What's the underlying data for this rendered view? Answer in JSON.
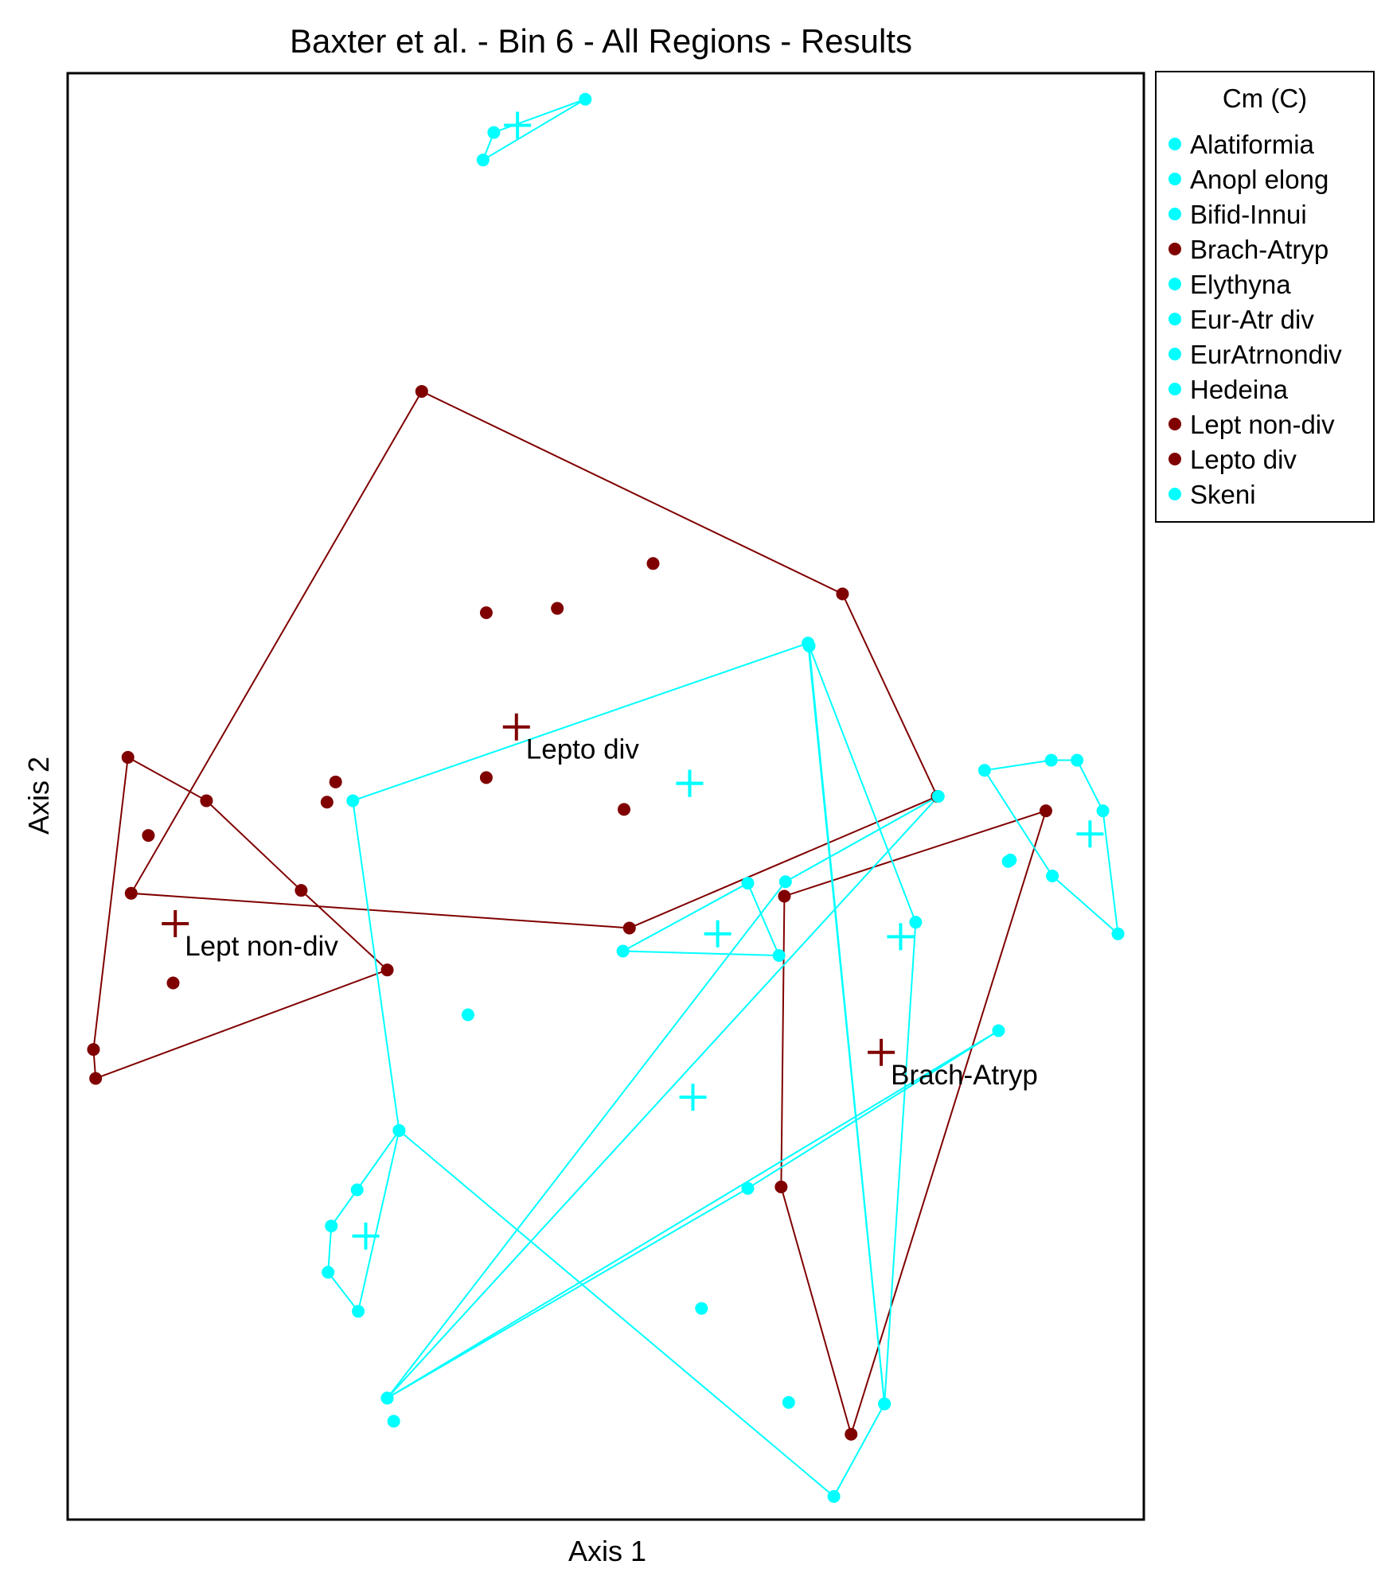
{
  "chart_data": {
    "type": "scatter",
    "title": "Baxter et al. - Bin 6 - All Regions - Results",
    "xlabel": "Axis 1",
    "ylabel": "Axis 2",
    "xlim": [
      0,
      1000
    ],
    "ylim": [
      0,
      1000
    ],
    "grid": false,
    "legend": {
      "title": "Cm (C)",
      "placement": "right",
      "entries": [
        {
          "name": "Alatiformia",
          "color": "#00ffff"
        },
        {
          "name": "Anopl elong",
          "color": "#00ffff"
        },
        {
          "name": "Bifid-Innui",
          "color": "#00ffff"
        },
        {
          "name": "Brach-Atryp",
          "color": "#800000"
        },
        {
          "name": "Elythyna",
          "color": "#00ffff"
        },
        {
          "name": "Eur-Atr div",
          "color": "#00ffff"
        },
        {
          "name": "EurAtrnondiv",
          "color": "#00ffff"
        },
        {
          "name": "Hedeina",
          "color": "#00ffff"
        },
        {
          "name": "Lept non-div",
          "color": "#800000"
        },
        {
          "name": "Lepto div",
          "color": "#800000"
        },
        {
          "name": "Skeni",
          "color": "#00ffff"
        }
      ]
    },
    "groups": [
      {
        "color": "#00ffff",
        "centroid": [
          418,
          964
        ],
        "hull": [
          [
            481,
            982
          ],
          [
            396,
            959
          ],
          [
            386,
            940
          ]
        ],
        "points": [
          [
            481,
            982
          ],
          [
            396,
            959
          ],
          [
            386,
            940
          ]
        ]
      },
      {
        "color": "#800000",
        "label": "Lepto div",
        "centroid": [
          417,
          548
        ],
        "hull": [
          [
            329,
            780
          ],
          [
            720,
            640
          ],
          [
            808,
            500
          ],
          [
            522,
            409
          ],
          [
            59,
            433
          ]
        ],
        "points": [
          [
            329,
            780
          ],
          [
            720,
            640
          ],
          [
            808,
            500
          ],
          [
            522,
            409
          ],
          [
            59,
            433
          ],
          [
            544,
            661
          ],
          [
            389,
            627
          ],
          [
            455,
            630
          ],
          [
            389,
            513
          ],
          [
            249,
            510
          ],
          [
            241,
            496
          ],
          [
            517,
            491
          ]
        ]
      },
      {
        "color": "#800000",
        "label": "Lept non-div",
        "centroid": [
          100,
          412
        ],
        "hull": [
          [
            56,
            527
          ],
          [
            129,
            497
          ],
          [
            217,
            435
          ],
          [
            297,
            380
          ],
          [
            26,
            305
          ],
          [
            24,
            325
          ]
        ],
        "points": [
          [
            56,
            527
          ],
          [
            129,
            497
          ],
          [
            217,
            435
          ],
          [
            297,
            380
          ],
          [
            26,
            305
          ],
          [
            24,
            325
          ],
          [
            75,
            473
          ],
          [
            98,
            371
          ]
        ]
      },
      {
        "color": "#800000",
        "label": "Brach-Atryp",
        "centroid": [
          756,
          323
        ],
        "hull": [
          [
            909,
            490
          ],
          [
            666,
            431
          ],
          [
            663,
            230
          ],
          [
            728,
            59
          ]
        ],
        "points": [
          [
            909,
            490
          ],
          [
            666,
            431
          ],
          [
            663,
            230
          ],
          [
            728,
            59
          ]
        ]
      },
      {
        "color": "#00ffff",
        "centroid": [
          604,
          405
        ],
        "hull": [
          [
            632,
            440
          ],
          [
            661,
            390
          ],
          [
            516,
            393
          ]
        ],
        "points": [
          [
            632,
            440
          ],
          [
            661,
            390
          ],
          [
            516,
            393
          ]
        ]
      },
      {
        "color": "#00ffff",
        "centroid": [
          774,
          403
        ],
        "hull": [
          [
            689,
            604
          ],
          [
            788,
            413
          ],
          [
            759,
            80
          ]
        ],
        "points": [
          [
            689,
            604
          ],
          [
            788,
            413
          ],
          [
            759,
            80
          ]
        ]
      },
      {
        "color": "#00ffff",
        "centroid": [
          581,
          292
        ],
        "hull": [
          [
            809,
            500
          ],
          [
            667,
            441
          ],
          [
            297,
            84
          ]
        ],
        "points": [
          [
            809,
            500
          ],
          [
            667,
            441
          ],
          [
            297,
            84
          ]
        ]
      },
      {
        "color": "#00ffff",
        "centroid": [
          950,
          474
        ],
        "hull": [
          [
            852,
            518
          ],
          [
            914,
            525
          ],
          [
            938,
            525
          ],
          [
            962,
            490
          ],
          [
            976,
            405
          ],
          [
            915,
            445
          ]
        ],
        "points": [
          [
            852,
            518
          ],
          [
            914,
            525
          ],
          [
            938,
            525
          ],
          [
            962,
            490
          ],
          [
            976,
            405
          ],
          [
            915,
            445
          ],
          [
            876,
            456
          ]
        ]
      },
      {
        "color": "#00ffff",
        "centroid": [
          277,
          196
        ],
        "hull": [
          [
            270,
            144
          ],
          [
            308,
            269
          ],
          [
            269,
            228
          ],
          [
            245,
            203
          ],
          [
            242,
            171
          ]
        ],
        "points": [
          [
            270,
            144
          ],
          [
            308,
            269
          ],
          [
            269,
            228
          ],
          [
            245,
            203
          ],
          [
            242,
            171
          ]
        ]
      },
      {
        "color": "#00ffff",
        "centroid": [
          578,
          509
        ],
        "hull": [
          [
            865,
            338
          ],
          [
            632,
            229
          ],
          [
            297,
            84
          ]
        ],
        "points": [
          [
            865,
            338
          ],
          [
            632,
            229
          ],
          [
            297,
            84
          ]
        ]
      },
      {
        "color": "#00ffff",
        "label": "",
        "centroid": [
          0,
          0
        ],
        "hull": [],
        "points": []
      },
      {
        "color": "#00ffff",
        "centroid": [
          578,
          509
        ],
        "hull": [
          [
            688,
            606
          ],
          [
            265,
            497
          ],
          [
            308,
            269
          ],
          [
            712,
            16
          ],
          [
            759,
            80
          ]
        ],
        "points": [
          [
            688,
            606
          ],
          [
            265,
            497
          ],
          [
            308,
            269
          ],
          [
            712,
            16
          ],
          [
            759,
            80
          ]
        ]
      }
    ],
    "extra_points": [
      {
        "color": "#00ffff",
        "points": [
          [
            372,
            349
          ],
          [
            589,
            146
          ],
          [
            670,
            81
          ],
          [
            303,
            68
          ],
          [
            874,
            455
          ]
        ]
      }
    ]
  }
}
